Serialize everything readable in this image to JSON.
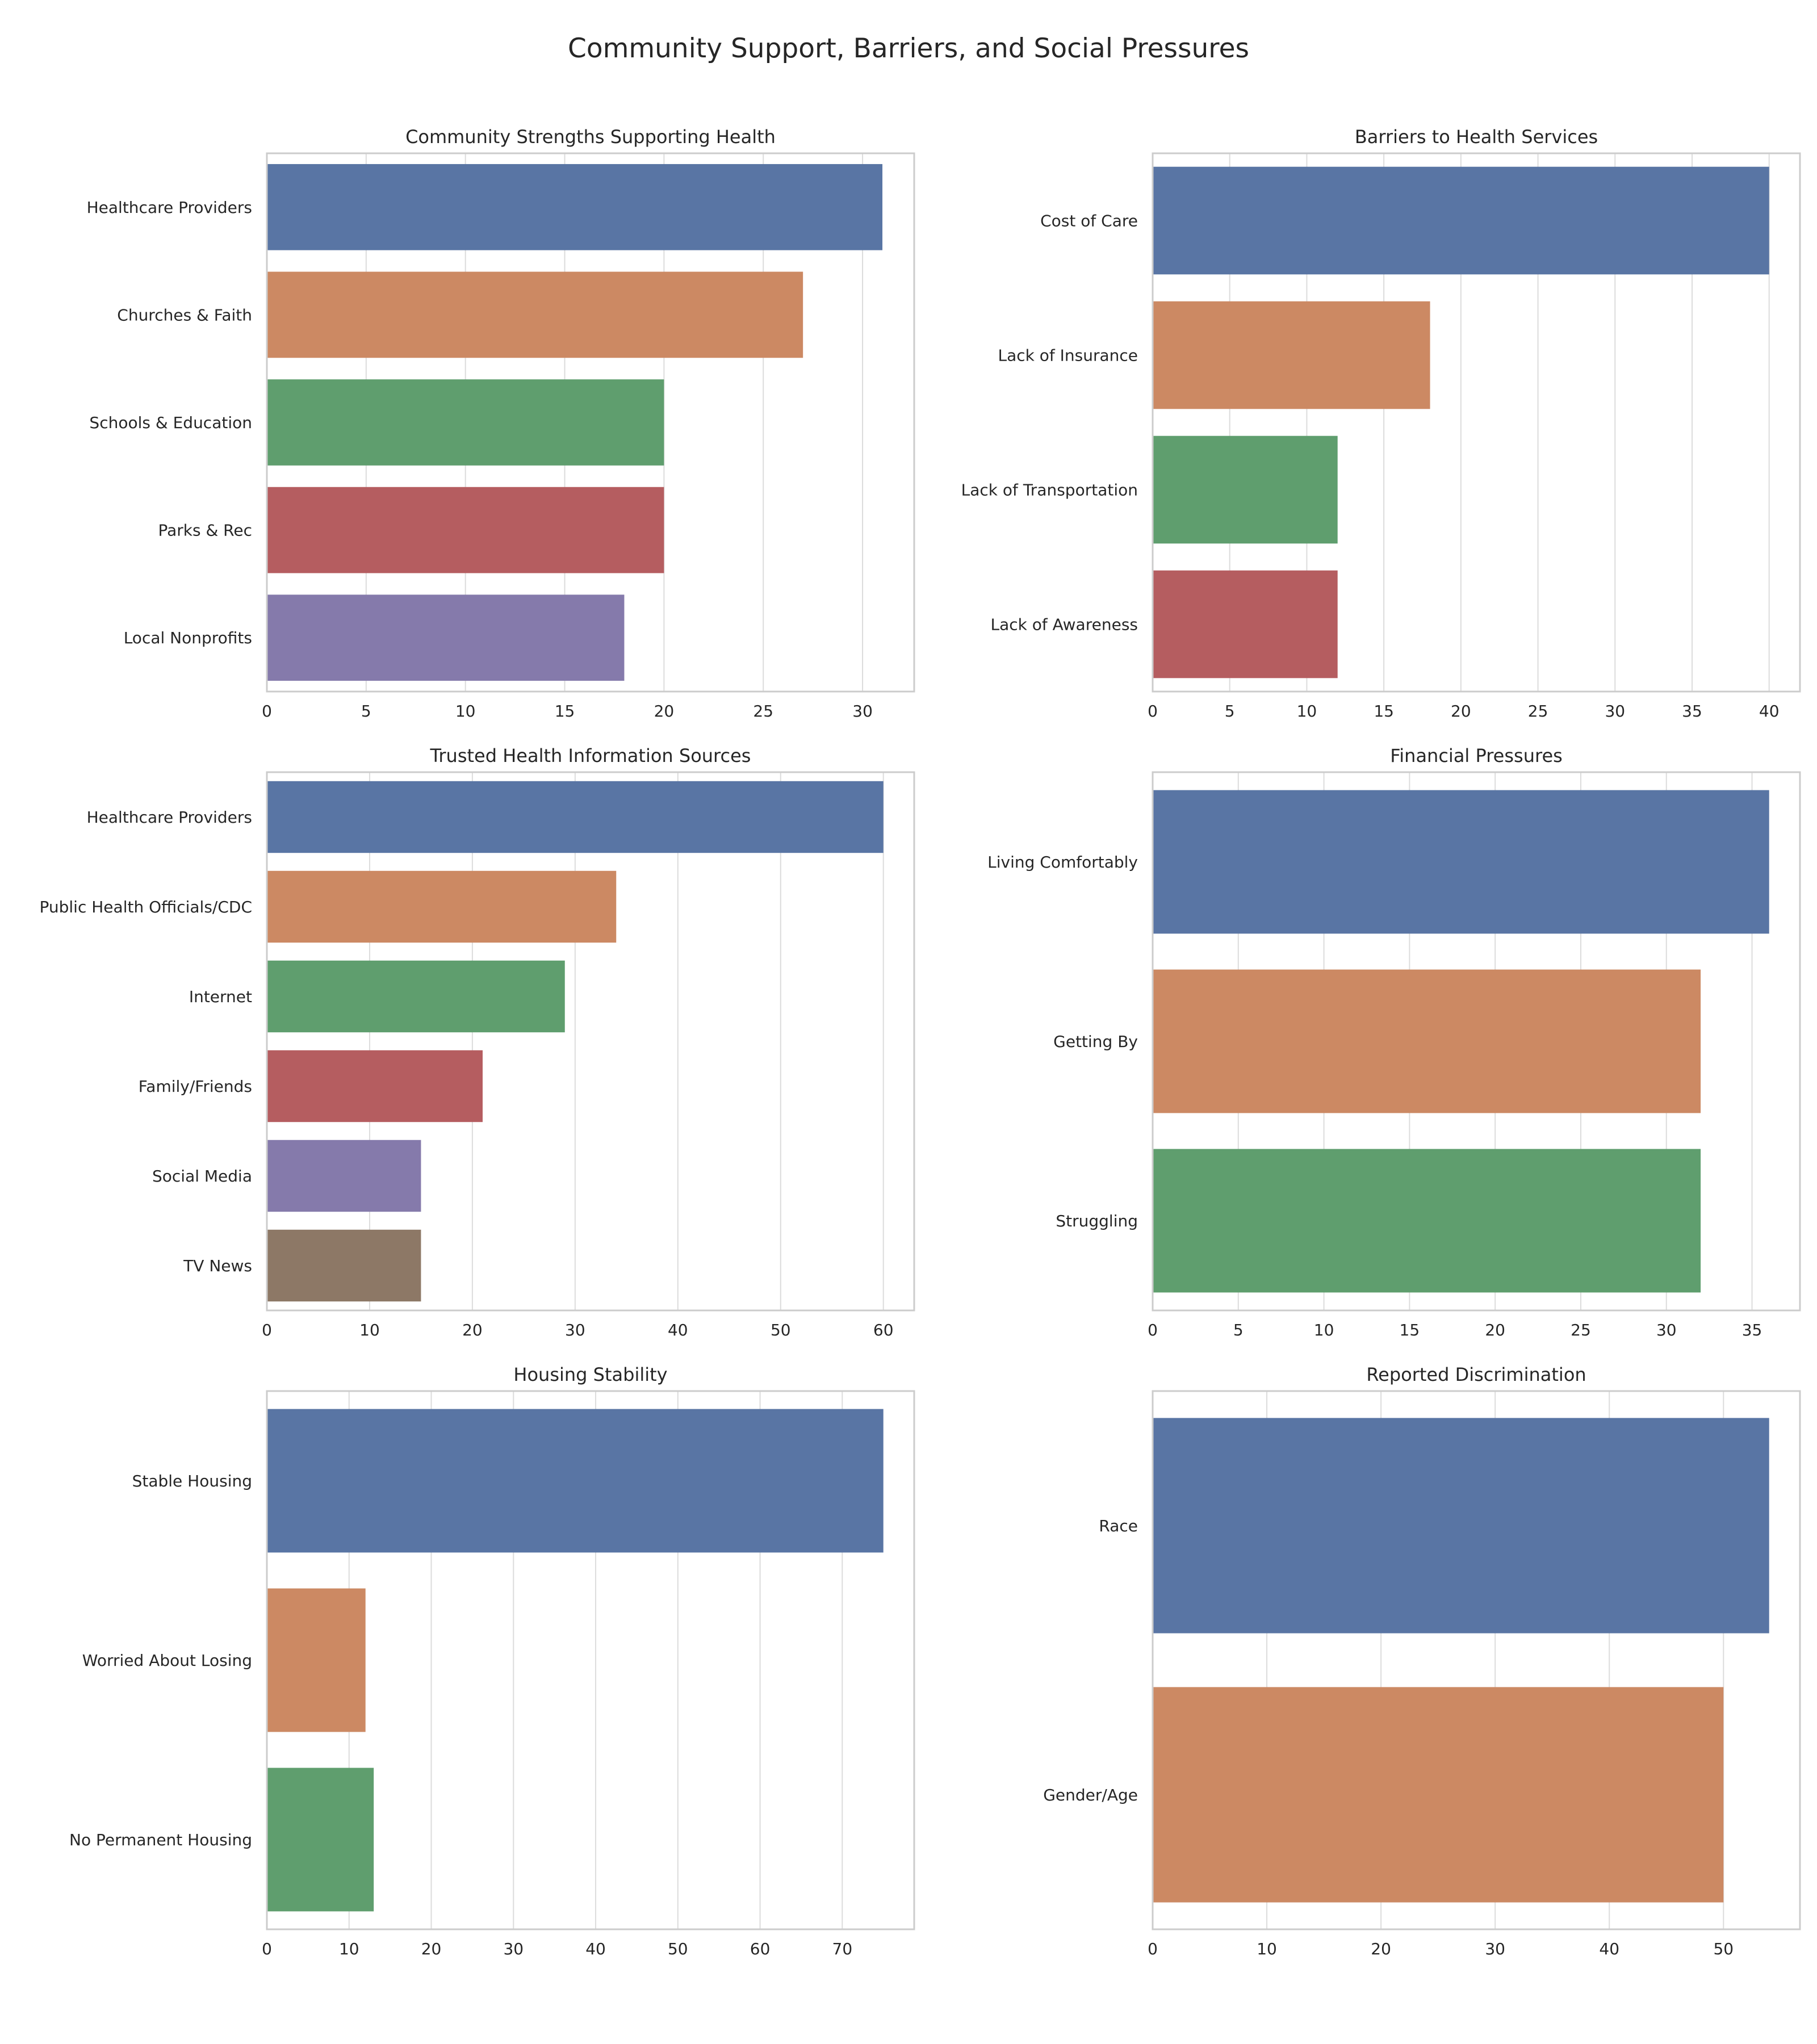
{
  "figure": {
    "title": "Community Support, Barriers, and Social Pressures"
  },
  "palette": [
    "#5975a4",
    "#cc8963",
    "#5f9e6e",
    "#b55d60",
    "#857aab",
    "#8d7866"
  ],
  "chart_data": [
    {
      "type": "bar",
      "orientation": "horizontal",
      "title": "Community Strengths Supporting Health",
      "categories": [
        "Healthcare Providers",
        "Churches & Faith",
        "Schools & Education",
        "Parks & Rec",
        "Local Nonprofits"
      ],
      "values": [
        31,
        27,
        20,
        20,
        18
      ],
      "xlim": [
        0,
        32.6
      ],
      "xticks": [
        0,
        5,
        10,
        15,
        20,
        25,
        30
      ],
      "xlabel": "",
      "ylabel": "",
      "grid": "x",
      "legend": "none"
    },
    {
      "type": "bar",
      "orientation": "horizontal",
      "title": "Barriers to Health Services",
      "categories": [
        "Cost of Care",
        "Lack of Insurance",
        "Lack of Transportation",
        "Lack of Awareness"
      ],
      "values": [
        40,
        18,
        12,
        12
      ],
      "xlim": [
        0,
        42
      ],
      "xticks": [
        0,
        5,
        10,
        15,
        20,
        25,
        30,
        35,
        40
      ],
      "xlabel": "",
      "ylabel": "",
      "grid": "x",
      "legend": "none"
    },
    {
      "type": "bar",
      "orientation": "horizontal",
      "title": "Trusted Health Information Sources",
      "categories": [
        "Healthcare Providers",
        "Public Health Officials/CDC",
        "Internet",
        "Family/Friends",
        "Social Media",
        "TV News"
      ],
      "values": [
        60,
        34,
        29,
        21,
        15,
        15
      ],
      "xlim": [
        0,
        63
      ],
      "xticks": [
        0,
        10,
        20,
        30,
        40,
        50,
        60
      ],
      "xlabel": "",
      "ylabel": "",
      "grid": "x",
      "legend": "none"
    },
    {
      "type": "bar",
      "orientation": "horizontal",
      "title": "Financial Pressures",
      "categories": [
        "Living Comfortably",
        "Getting By",
        "Struggling"
      ],
      "values": [
        36,
        32,
        32
      ],
      "xlim": [
        0,
        37.8
      ],
      "xticks": [
        0,
        5,
        10,
        15,
        20,
        25,
        30,
        35
      ],
      "xlabel": "",
      "ylabel": "",
      "grid": "x",
      "legend": "none"
    },
    {
      "type": "bar",
      "orientation": "horizontal",
      "title": "Housing Stability",
      "categories": [
        "Stable Housing",
        "Worried About Losing",
        "No Permanent Housing"
      ],
      "values": [
        75,
        12,
        13
      ],
      "xlim": [
        0,
        78.75
      ],
      "xticks": [
        0,
        10,
        20,
        30,
        40,
        50,
        60,
        70
      ],
      "xlabel": "",
      "ylabel": "",
      "grid": "x",
      "legend": "none"
    },
    {
      "type": "bar",
      "orientation": "horizontal",
      "title": "Reported Discrimination",
      "categories": [
        "Race",
        "Gender/Age"
      ],
      "values": [
        54,
        50
      ],
      "xlim": [
        0,
        56.7
      ],
      "xticks": [
        0,
        10,
        20,
        30,
        40,
        50
      ],
      "xlabel": "",
      "ylabel": "",
      "grid": "x",
      "legend": "none"
    }
  ]
}
